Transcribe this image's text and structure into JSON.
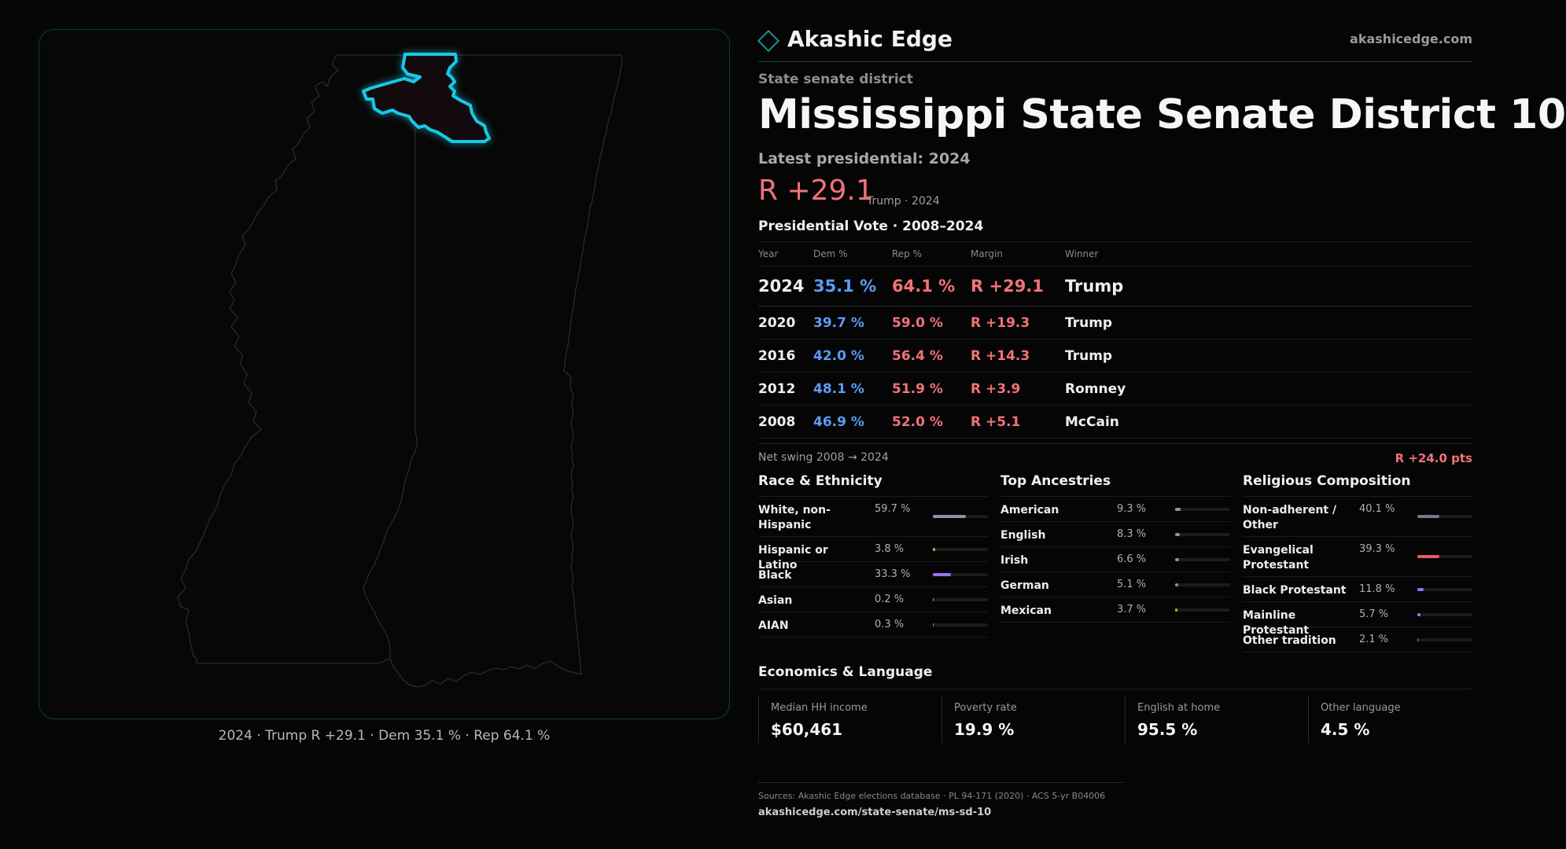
{
  "brand": {
    "name": "Akashic Edge",
    "url": "akashicedge.com"
  },
  "district": {
    "kicker": "State senate district",
    "title": "Mississippi State Senate District 10",
    "latest": "Latest presidential: 2024",
    "margin": "R +29.1",
    "margin_sub": "Trump · 2024"
  },
  "map": {
    "caption": "2024 · Trump R +29.1 · Dem 35.1 % · Rep 64.1 %",
    "highlight_color": "#19c8e6",
    "outline_color": "#2a2a2a"
  },
  "vote": {
    "title": "Presidential Vote · 2008–2024",
    "headers": {
      "year": "Year",
      "dem": "Dem %",
      "rep": "Rep %",
      "margin": "Margin",
      "winner": "Winner"
    },
    "rows": [
      {
        "year": "2024",
        "dem": "35.1 %",
        "rep": "64.1 %",
        "margin": "R +29.1",
        "winner": "Trump"
      },
      {
        "year": "2020",
        "dem": "39.7 %",
        "rep": "59.0 %",
        "margin": "R +19.3",
        "winner": "Trump"
      },
      {
        "year": "2016",
        "dem": "42.0 %",
        "rep": "56.4 %",
        "margin": "R +14.3",
        "winner": "Trump"
      },
      {
        "year": "2012",
        "dem": "48.1 %",
        "rep": "51.9 %",
        "margin": "R +3.9",
        "winner": "Romney"
      },
      {
        "year": "2008",
        "dem": "46.9 %",
        "rep": "52.0 %",
        "margin": "R +5.1",
        "winner": "McCain"
      }
    ],
    "swing_label": "Net swing 2008 → 2024",
    "swing_value": "R +24.0 pts"
  },
  "race": {
    "title": "Race & Ethnicity",
    "items": [
      {
        "label": "White, non-Hispanic",
        "value": "59.7 %",
        "fraction": 0.597,
        "color": "#8a93a8"
      },
      {
        "label": "Hispanic or Latino",
        "value": "3.8 %",
        "fraction": 0.038,
        "color": "#e0a030"
      },
      {
        "label": "Black",
        "value": "33.3 %",
        "fraction": 0.333,
        "color": "#9b6ff2"
      },
      {
        "label": "Asian",
        "value": "0.2 %",
        "fraction": 0.002,
        "color": "#4ab0c0"
      },
      {
        "label": "AIAN",
        "value": "0.3 %",
        "fraction": 0.003,
        "color": "#c08060"
      }
    ]
  },
  "ancestry": {
    "title": "Top Ancestries",
    "items": [
      {
        "label": "American",
        "value": "9.3 %",
        "fraction": 0.093,
        "color": "#8a93a8"
      },
      {
        "label": "English",
        "value": "8.3 %",
        "fraction": 0.083,
        "color": "#8a93a8"
      },
      {
        "label": "Irish",
        "value": "6.6 %",
        "fraction": 0.066,
        "color": "#8a93a8"
      },
      {
        "label": "German",
        "value": "5.1 %",
        "fraction": 0.051,
        "color": "#8a93a8"
      },
      {
        "label": "Mexican",
        "value": "3.7 %",
        "fraction": 0.037,
        "color": "#e0a030"
      }
    ]
  },
  "religion": {
    "title": "Religious Composition",
    "items": [
      {
        "label": "Non-adherent / Other",
        "value": "40.1 %",
        "fraction": 0.401,
        "color": "#737a8a"
      },
      {
        "label": "Evangelical Protestant",
        "value": "39.3 %",
        "fraction": 0.393,
        "color": "#e35d68"
      },
      {
        "label": "Black Protestant",
        "value": "11.8 %",
        "fraction": 0.118,
        "color": "#9b6ff2"
      },
      {
        "label": "Mainline Protestant",
        "value": "5.7 %",
        "fraction": 0.057,
        "color": "#5b9cf5"
      },
      {
        "label": "Other tradition",
        "value": "2.1 %",
        "fraction": 0.021,
        "color": "#8a8a8a"
      }
    ]
  },
  "economics": {
    "title": "Economics & Language",
    "cards": [
      {
        "label": "Median HH income",
        "value": "$60,461"
      },
      {
        "label": "Poverty rate",
        "value": "19.9 %"
      },
      {
        "label": "English at home",
        "value": "95.5 %"
      },
      {
        "label": "Other language",
        "value": "4.5 %"
      }
    ]
  },
  "sources": {
    "text": "Sources: Akashic Edge elections database · PL 94-171 (2020) · ACS 5-yr B04006",
    "url": "akashicedge.com/state-senate/ms-sd-10"
  }
}
